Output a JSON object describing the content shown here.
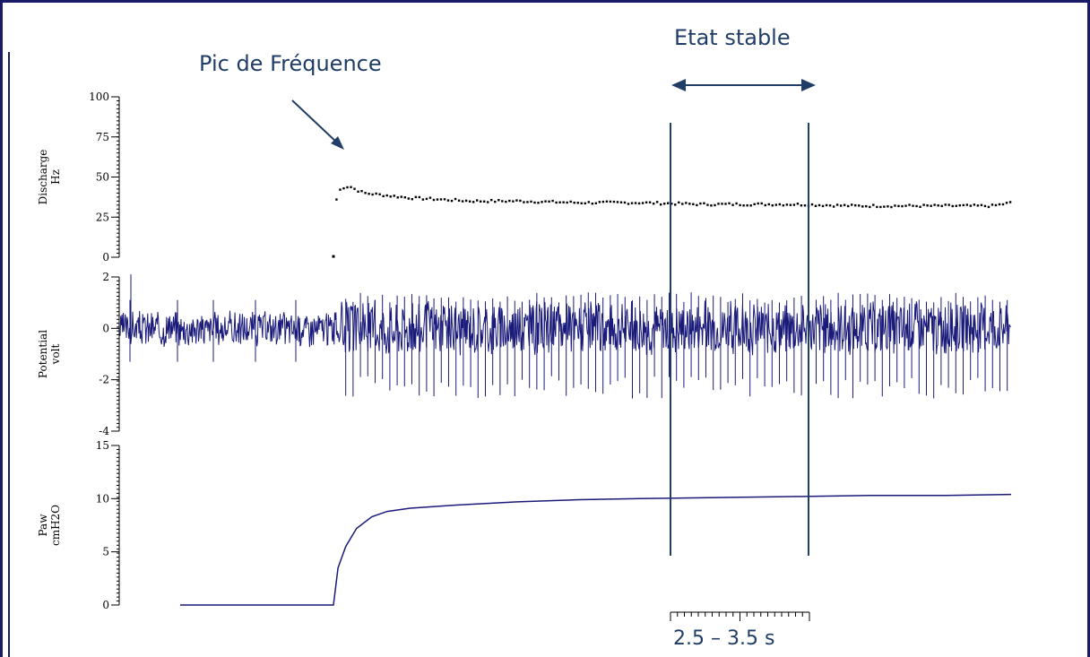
{
  "annotations": {
    "peak_label": "Pic de Fréquence",
    "steady_label": "Etat stable",
    "scale_label": "2.5 – 3.5 s"
  },
  "colors": {
    "trace": "#1a1a7a",
    "annotation": "#1f3d66",
    "axis": "#000000",
    "dots": "#000000"
  },
  "chart_data": [
    {
      "type": "scatter",
      "ylabel": "Discharge\nHz",
      "ylim": [
        0,
        100
      ],
      "ticks": [
        "100",
        "75",
        "50",
        "25",
        "0"
      ],
      "tick_values": [
        100,
        75,
        50,
        25,
        0
      ],
      "series": [
        {
          "points": [
            [
              0.0,
              0.5
            ],
            [
              0.02,
              36
            ],
            [
              0.03,
              40
            ],
            [
              0.05,
              43
            ],
            [
              0.08,
              44
            ],
            [
              0.11,
              44
            ],
            [
              0.15,
              42
            ],
            [
              0.2,
              40
            ],
            [
              0.3,
              39
            ],
            [
              0.4,
              38
            ],
            [
              0.5,
              37
            ],
            [
              0.6,
              36.5
            ],
            [
              0.7,
              36
            ],
            [
              0.8,
              35.5
            ],
            [
              0.9,
              35
            ],
            [
              1.0,
              35
            ],
            [
              1.2,
              35
            ],
            [
              1.4,
              34.5
            ],
            [
              1.6,
              34
            ],
            [
              1.8,
              34
            ],
            [
              2.0,
              34
            ],
            [
              2.2,
              33.5
            ],
            [
              2.4,
              33
            ],
            [
              2.6,
              33
            ],
            [
              2.8,
              33
            ],
            [
              3.0,
              33
            ],
            [
              3.2,
              32.5
            ],
            [
              3.4,
              32
            ],
            [
              3.6,
              32
            ],
            [
              3.8,
              32
            ],
            [
              4.0,
              32
            ],
            [
              4.2,
              32
            ],
            [
              4.3,
              32
            ],
            [
              4.42,
              34
            ]
          ]
        }
      ]
    },
    {
      "type": "line",
      "ylabel": "Potential\nvolt",
      "ylim": [
        -4,
        2
      ],
      "ticks": [
        "2",
        "0",
        "-2",
        "-4"
      ],
      "tick_values": [
        2,
        0,
        -2,
        -4
      ],
      "baseline_noise_before_stim": 0.6,
      "spike_amplitude_after_stim": -2.3
    },
    {
      "type": "line",
      "ylabel": "Paw\ncmH2O",
      "ylim": [
        0,
        15
      ],
      "ticks": [
        "15",
        "10",
        "5",
        "0"
      ],
      "tick_values": [
        15,
        10,
        5,
        0
      ],
      "series": [
        {
          "points": [
            [
              -1.0,
              0
            ],
            [
              0.0,
              0
            ],
            [
              0.03,
              3.5
            ],
            [
              0.08,
              5.5
            ],
            [
              0.15,
              7.2
            ],
            [
              0.25,
              8.3
            ],
            [
              0.35,
              8.8
            ],
            [
              0.5,
              9.1
            ],
            [
              0.8,
              9.4
            ],
            [
              1.2,
              9.7
            ],
            [
              1.6,
              9.9
            ],
            [
              2.0,
              10.0
            ],
            [
              2.5,
              10.1
            ],
            [
              3.0,
              10.2
            ],
            [
              3.5,
              10.3
            ],
            [
              4.0,
              10.3
            ],
            [
              4.42,
              10.4
            ]
          ]
        }
      ]
    }
  ]
}
